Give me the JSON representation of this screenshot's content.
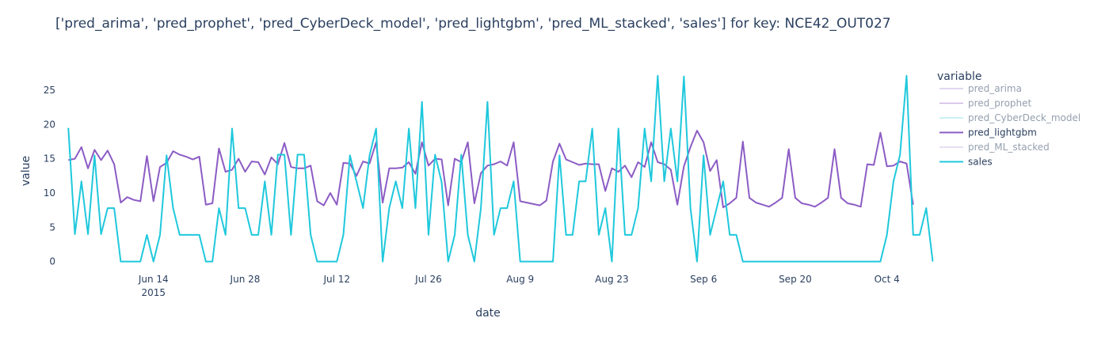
{
  "chart_data": {
    "type": "line",
    "title": "['pred_arima', 'pred_prophet', 'pred_CyberDeck_model', 'pred_lightgbm', 'pred_ML_stacked', 'sales'] for key: NCE42_OUT027",
    "xlabel": "date",
    "ylabel": "value",
    "x_start": "2015-06-01",
    "x_end": "2015-10-08",
    "xlim": [
      "2015-05-31",
      "2015-10-09"
    ],
    "ylim": [
      -0.5,
      28
    ],
    "x_ticks": [
      {
        "label": "Jun 14",
        "sub": "2015",
        "date": "2015-06-14"
      },
      {
        "label": "Jun 28",
        "sub": "",
        "date": "2015-06-28"
      },
      {
        "label": "Jul 12",
        "sub": "",
        "date": "2015-07-12"
      },
      {
        "label": "Jul 26",
        "sub": "",
        "date": "2015-07-26"
      },
      {
        "label": "Aug 9",
        "sub": "",
        "date": "2015-08-09"
      },
      {
        "label": "Aug 23",
        "sub": "",
        "date": "2015-08-23"
      },
      {
        "label": "Sep 6",
        "sub": "",
        "date": "2015-09-06"
      },
      {
        "label": "Sep 20",
        "sub": "",
        "date": "2015-09-20"
      },
      {
        "label": "Oct 4",
        "sub": "",
        "date": "2015-10-04"
      }
    ],
    "y_ticks": [
      0,
      5,
      10,
      15,
      20,
      25
    ],
    "legend": {
      "title": "variable",
      "placement": "right"
    },
    "series": [
      {
        "name": "pred_arima",
        "color": "#b497d6",
        "visible": false,
        "values": []
      },
      {
        "name": "pred_prophet",
        "color": "#9a70c8",
        "visible": false,
        "values": []
      },
      {
        "name": "pred_CyberDeck_model",
        "color": "#74d7e6",
        "visible": false,
        "values": []
      },
      {
        "name": "pred_lightgbm",
        "color": "#8c5cc4",
        "visible": true,
        "values": [
          14.8,
          15.0,
          16.7,
          13.6,
          16.3,
          14.8,
          16.2,
          14.2,
          8.6,
          9.4,
          9.0,
          8.8,
          15.4,
          8.8,
          13.8,
          14.4,
          16.1,
          15.6,
          15.3,
          14.9,
          15.3,
          8.3,
          8.5,
          16.5,
          13.1,
          13.4,
          15.0,
          13.1,
          14.6,
          14.5,
          12.7,
          15.2,
          14.2,
          17.3,
          13.8,
          13.6,
          13.6,
          14.0,
          8.8,
          8.2,
          10.0,
          8.3,
          14.4,
          14.3,
          12.5,
          14.6,
          14.3,
          17.4,
          8.6,
          13.6,
          13.6,
          13.7,
          14.5,
          12.8,
          17.4,
          14.0,
          15.0,
          14.9,
          8.2,
          15.0,
          14.5,
          17.4,
          8.5,
          12.9,
          14.0,
          14.2,
          14.6,
          14.0,
          17.4,
          8.8,
          8.6,
          8.4,
          8.2,
          8.9,
          14.6,
          17.2,
          14.9,
          14.5,
          14.1,
          14.3,
          14.2,
          14.2,
          10.3,
          13.6,
          13.1,
          14.0,
          12.3,
          14.5,
          13.8,
          17.4,
          14.5,
          14.2,
          13.4,
          8.3,
          13.9,
          16.7,
          19.1,
          17.4,
          13.2,
          14.8,
          7.9,
          8.5,
          9.3,
          17.5,
          9.3,
          8.6,
          8.3,
          8.0,
          8.6,
          9.3,
          16.4,
          9.3,
          8.5,
          8.3,
          8.0,
          8.6,
          9.3,
          16.4,
          9.3,
          8.5,
          8.3,
          8.0,
          14.2,
          14.1,
          18.8,
          13.9,
          14.0,
          14.6,
          14.3,
          8.3
        ]
      },
      {
        "name": "pred_ML_stacked",
        "color": "#c4a5df",
        "visible": false,
        "values": []
      },
      {
        "name": "sales",
        "color": "#1fc8dc",
        "visible": true,
        "values": [
          19.5,
          4.0,
          11.7,
          4.0,
          15.5,
          4.0,
          7.8,
          7.8,
          0,
          0,
          0,
          0,
          3.9,
          0,
          3.9,
          15.5,
          7.8,
          3.9,
          3.9,
          3.9,
          3.9,
          0,
          0,
          7.8,
          3.9,
          19.4,
          7.8,
          7.8,
          3.9,
          3.9,
          11.7,
          3.9,
          15.6,
          15.6,
          3.9,
          15.6,
          15.6,
          3.9,
          0,
          0,
          0,
          0,
          3.9,
          15.5,
          11.7,
          7.8,
          15.5,
          19.4,
          0,
          7.8,
          11.7,
          7.8,
          19.4,
          7.8,
          23.3,
          3.9,
          15.6,
          11.6,
          0,
          3.9,
          15.6,
          3.9,
          0,
          7.8,
          23.3,
          3.9,
          7.8,
          7.8,
          11.7,
          0,
          0,
          0,
          0,
          0,
          0,
          15.5,
          3.9,
          3.9,
          11.7,
          11.7,
          19.4,
          3.9,
          7.8,
          0,
          19.4,
          3.9,
          3.9,
          7.8,
          19.4,
          11.7,
          27.1,
          11.7,
          19.4,
          11.7,
          27.0,
          7.8,
          0,
          15.5,
          3.9,
          7.8,
          11.7,
          3.9,
          3.9,
          0,
          0,
          0,
          0,
          0,
          0,
          0,
          0,
          0,
          0,
          0,
          0,
          0,
          0,
          0,
          0,
          0,
          0,
          0,
          0,
          0,
          0,
          3.9,
          11.7,
          15.6,
          27.1,
          3.9,
          3.9,
          7.8,
          0
        ]
      }
    ]
  }
}
